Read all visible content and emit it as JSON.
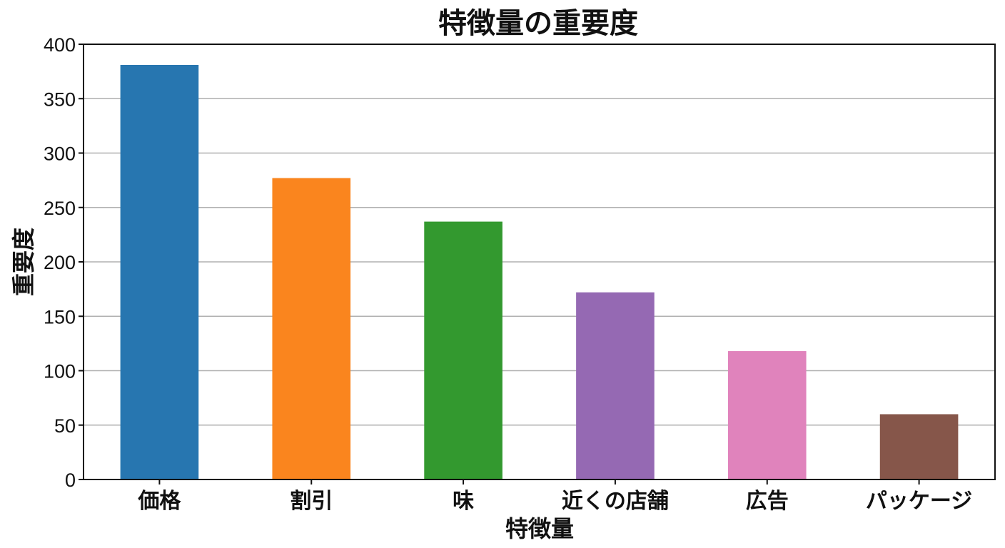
{
  "chart_data": {
    "type": "bar",
    "title": "特徴量の重要度",
    "xlabel": "特徴量",
    "ylabel": "重要度",
    "categories": [
      "価格",
      "割引",
      "味",
      "近くの店舗",
      "広告",
      "パッケージ"
    ],
    "values": [
      381,
      277,
      237,
      172,
      118,
      60
    ],
    "colors": [
      "#2776b0",
      "#fa851e",
      "#33992f",
      "#9569b3",
      "#e083bc",
      "#86564a"
    ],
    "ylim": [
      0,
      400
    ],
    "yticks": [
      0,
      50,
      100,
      150,
      200,
      250,
      300,
      350,
      400
    ],
    "grid": "horizontal",
    "legend": "none"
  }
}
